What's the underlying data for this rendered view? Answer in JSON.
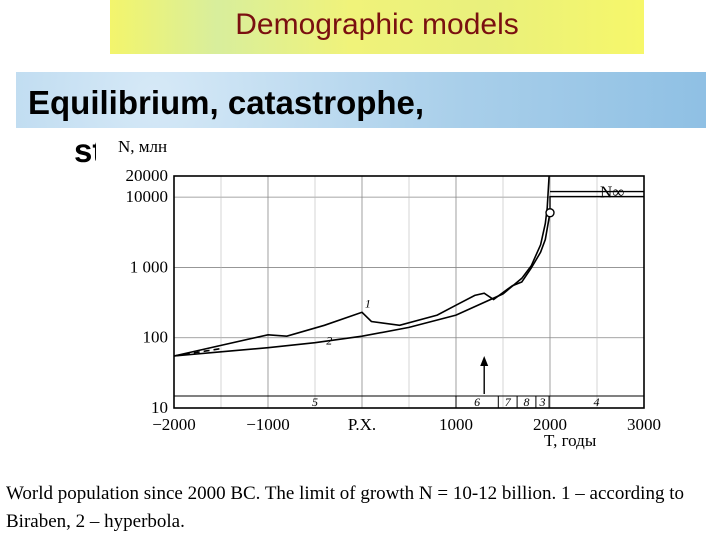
{
  "slide": {
    "title": "Demographic models",
    "subtitle_line1": "Equilibrium, catastrophe,",
    "subtitle_line2": "stabilization",
    "caption": "World population since 2000 BC. The limit of growth N = 10-12 billion. 1 – according to Biraben, 2 – hyperbola."
  },
  "chart_data": {
    "type": "line",
    "ylabel": "N, млн",
    "xlabel": "T, годы",
    "xlim": [
      -2000,
      3000
    ],
    "ylim": [
      10,
      20000
    ],
    "y_scale": "log",
    "x_tick_labels": [
      "−2000",
      "−1000",
      "P.X.",
      "1000",
      "2000",
      "3000"
    ],
    "x_tick_values": [
      -2000,
      -1000,
      0,
      1000,
      2000,
      3000
    ],
    "y_tick_labels": [
      "10",
      "100",
      "1 000",
      "10000",
      "20000"
    ],
    "y_tick_values": [
      10,
      100,
      1000,
      10000,
      20000
    ],
    "asymptote_label": "N∞",
    "asymptote_value": 12000,
    "series": [
      {
        "name": "1",
        "style": "solid",
        "x": [
          -2000,
          -1000,
          -800,
          -400,
          0,
          100,
          400,
          800,
          1000,
          1200,
          1300,
          1400,
          1500,
          1600,
          1700,
          1800,
          1900,
          1950,
          2000
        ],
        "y": [
          55,
          110,
          105,
          150,
          230,
          170,
          150,
          210,
          290,
          400,
          430,
          350,
          440,
          550,
          620,
          980,
          1650,
          2500,
          6000
        ]
      },
      {
        "name": "2",
        "style": "solid",
        "x": [
          -2000,
          -1500,
          -1000,
          -500,
          0,
          500,
          1000,
          1500,
          1700,
          1800,
          1900,
          1950,
          1970,
          1990
        ],
        "y": [
          55,
          63,
          72,
          85,
          105,
          140,
          210,
          420,
          700,
          1050,
          2100,
          4200,
          7000,
          20000
        ]
      },
      {
        "name": "",
        "style": "dashed",
        "x": [
          -2000,
          -1500
        ],
        "y": [
          55,
          70
        ]
      }
    ],
    "marked_point": {
      "x": 2000,
      "y": 6000
    },
    "arrow_x": 1300,
    "bottom_bar_labels": [
      "5",
      "6",
      "7",
      "8",
      "3",
      "4"
    ]
  }
}
